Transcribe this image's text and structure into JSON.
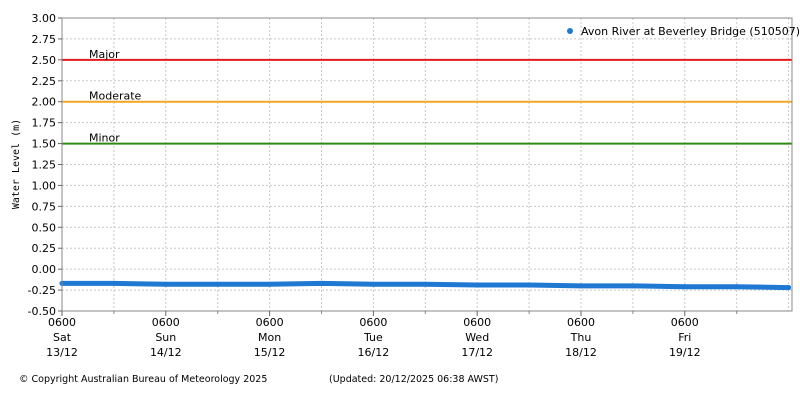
{
  "chart_data": {
    "type": "line",
    "ylabel": "Water Level (m)",
    "ylim": [
      -0.5,
      3.0
    ],
    "grid": true,
    "legend_position": "top-right",
    "y_ticks": [
      "3.00",
      "2.75",
      "2.50",
      "2.25",
      "2.00",
      "1.75",
      "1.50",
      "1.25",
      "1.00",
      "0.75",
      "0.50",
      "0.25",
      "0.00",
      "-0.25",
      "-0.50"
    ],
    "x_ticks": [
      {
        "time": "0600",
        "day": "Sat",
        "date": "13/12"
      },
      {
        "time": "0600",
        "day": "Sun",
        "date": "14/12"
      },
      {
        "time": "0600",
        "day": "Mon",
        "date": "15/12"
      },
      {
        "time": "0600",
        "day": "Tue",
        "date": "16/12"
      },
      {
        "time": "0600",
        "day": "Wed",
        "date": "17/12"
      },
      {
        "time": "0600",
        "day": "Thu",
        "date": "18/12"
      },
      {
        "time": "0600",
        "day": "Fri",
        "date": "19/12"
      }
    ],
    "thresholds": [
      {
        "name": "Major",
        "value": 2.5,
        "color": "#e31a1c"
      },
      {
        "name": "Moderate",
        "value": 2.0,
        "color": "#f5a623"
      },
      {
        "name": "Minor",
        "value": 1.5,
        "color": "#2e8b11"
      }
    ],
    "series": [
      {
        "name": "Avon River at Beverley Bridge (510507)",
        "color": "#1f78d1",
        "x": [
          "13/12 06:00",
          "13/12 18:00",
          "14/12 06:00",
          "14/12 18:00",
          "15/12 06:00",
          "15/12 18:00",
          "16/12 06:00",
          "16/12 18:00",
          "17/12 06:00",
          "17/12 18:00",
          "18/12 06:00",
          "18/12 18:00",
          "19/12 06:00",
          "19/12 18:00",
          "20/12 06:00"
        ],
        "values": [
          -0.17,
          -0.17,
          -0.18,
          -0.18,
          -0.18,
          -0.17,
          -0.18,
          -0.18,
          -0.19,
          -0.19,
          -0.2,
          -0.2,
          -0.21,
          -0.21,
          -0.22
        ]
      }
    ]
  },
  "footer": {
    "copyright": "© Copyright Australian Bureau of Meteorology 2025",
    "updated": "(Updated: 20/12/2025 06:38 AWST)"
  }
}
